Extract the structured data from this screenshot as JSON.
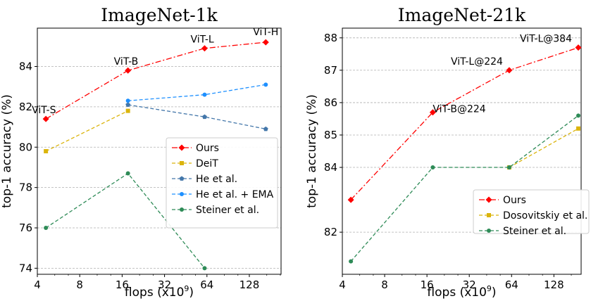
{
  "chart_data": [
    {
      "type": "line",
      "title": "ImageNet-1k",
      "xlabel_base": "flops (x10",
      "xlabel_exp": "9",
      "xlabel_end": ")",
      "ylabel": "top-1 accuracy (%)",
      "xscale": "log2",
      "xlim": [
        4,
        215
      ],
      "ylim": [
        73.7,
        85.9
      ],
      "xticks": [
        4,
        8,
        16,
        32,
        64,
        128
      ],
      "xtick_labels": [
        "4",
        "8",
        "16",
        "32",
        "64",
        "128"
      ],
      "yticks": [
        74,
        76,
        78,
        80,
        82,
        84
      ],
      "ytick_labels": [
        "74",
        "76",
        "78",
        "80",
        "82",
        "84"
      ],
      "grid": "horizontal dashed",
      "legend_position": "center-right",
      "series": [
        {
          "name": "Ours",
          "color": "#ff0000",
          "marker": "diamond",
          "dash": "dashdot",
          "x": [
            4.6,
            17.6,
            61.6,
            167.4
          ],
          "y": [
            81.4,
            83.8,
            84.9,
            85.2
          ]
        },
        {
          "name": "DeiT",
          "color": "#dbb40c",
          "marker": "square",
          "dash": "dashed",
          "x": [
            4.6,
            17.6
          ],
          "y": [
            79.8,
            81.8
          ]
        },
        {
          "name": "He et al.",
          "color": "#4477aa",
          "marker": "pentagon",
          "dash": "dashed",
          "x": [
            17.6,
            61.6,
            167.4
          ],
          "y": [
            82.1,
            81.5,
            80.9
          ]
        },
        {
          "name": "He et al. + EMA",
          "color": "#1e90ff",
          "marker": "circle",
          "dash": "dashed",
          "x": [
            17.6,
            61.6,
            167.4
          ],
          "y": [
            82.3,
            82.6,
            83.1
          ]
        },
        {
          "name": "Steiner et al.",
          "color": "#2e8b57",
          "marker": "circle",
          "dash": "dashed",
          "x": [
            4.6,
            17.6,
            61.6
          ],
          "y": [
            76.0,
            78.7,
            74.0
          ]
        }
      ],
      "annotations": [
        {
          "text": "ViT-S",
          "x": 4.6,
          "y": 81.4
        },
        {
          "text": "ViT-B",
          "x": 17.6,
          "y": 83.8
        },
        {
          "text": "ViT-L",
          "x": 61.6,
          "y": 84.9
        },
        {
          "text": "ViT-H",
          "x": 167.4,
          "y": 85.2
        }
      ]
    },
    {
      "type": "line",
      "title": "ImageNet-21k",
      "xlabel_base": "flops (x10",
      "xlabel_exp": "9",
      "xlabel_end": ")",
      "ylabel": "top-1 accuracy (%)",
      "xscale": "log2",
      "xlim": [
        4,
        200
      ],
      "ylim": [
        80.7,
        88.3
      ],
      "xticks": [
        4,
        8,
        16,
        32,
        64,
        128
      ],
      "xtick_labels": [
        "4",
        "8",
        "16",
        "32",
        "64",
        "128"
      ],
      "yticks": [
        82,
        84,
        85,
        86,
        87,
        88
      ],
      "ytick_labels": [
        "82",
        "84",
        "85",
        "86",
        "87",
        "88"
      ],
      "grid": "horizontal dashed",
      "legend_position": "lower-right",
      "series": [
        {
          "name": "Ours",
          "color": "#ff0000",
          "marker": "diamond",
          "dash": "dashdot",
          "x": [
            4.6,
            17.6,
            61.6,
            191.0
          ],
          "y": [
            83.0,
            85.7,
            87.0,
            87.7
          ]
        },
        {
          "name": "Dosovitskiy et al.",
          "color": "#dbb40c",
          "marker": "square",
          "dash": "dashed",
          "x": [
            61.6,
            191.0
          ],
          "y": [
            84.0,
            85.2
          ]
        },
        {
          "name": "Steiner et al.",
          "color": "#2e8b57",
          "marker": "circle",
          "dash": "dashed",
          "x": [
            4.6,
            17.6,
            61.6,
            191.0
          ],
          "y": [
            81.1,
            84.0,
            84.0,
            85.6
          ]
        }
      ],
      "annotations": [
        {
          "text": "ViT-B@224",
          "x": 17.6,
          "y": 85.7
        },
        {
          "text": "ViT-L@224",
          "x": 61.6,
          "y": 87.0
        },
        {
          "text": "ViT-L@384",
          "x": 191.0,
          "y": 87.7
        }
      ]
    }
  ]
}
